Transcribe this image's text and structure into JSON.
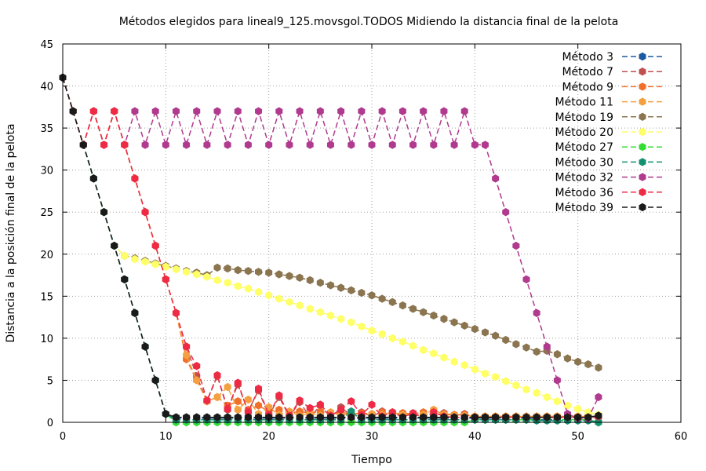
{
  "chart_data": {
    "type": "line",
    "title": "Métodos elegidos para lineal9_125.movsgol.TODOS Midiendo la distancia final de la pelota",
    "xlabel": "Tiempo",
    "ylabel": "Distancia a la posición final de la pelota",
    "xlim": [
      0,
      60
    ],
    "ylim": [
      0,
      45
    ],
    "xticks": [
      0,
      10,
      20,
      30,
      40,
      50,
      60
    ],
    "yticks": [
      0,
      5,
      10,
      15,
      20,
      25,
      30,
      35,
      40,
      45
    ],
    "grid": true,
    "legend_position": "top-right",
    "series": [
      {
        "name": "Método 3",
        "color": "#1a5aa0",
        "x": [
          0,
          1,
          2,
          3,
          4,
          5,
          6,
          7,
          8,
          9,
          10,
          11,
          12,
          13,
          14,
          15,
          16,
          17,
          18,
          19,
          20,
          21,
          22,
          23,
          24,
          25,
          26,
          27,
          28,
          29,
          30,
          31,
          32,
          33,
          34,
          35,
          36,
          37,
          38,
          39,
          40,
          41,
          42,
          43,
          44,
          45,
          46,
          47,
          48,
          49,
          50,
          51,
          52
        ],
        "y": [
          41,
          37,
          33,
          29,
          25,
          21,
          17,
          13,
          9,
          5,
          1,
          0.5,
          0.5,
          0.5,
          0.5,
          0.5,
          0.5,
          0.5,
          0.5,
          0.5,
          0.5,
          0.5,
          0.5,
          0.5,
          0.5,
          0.5,
          0.5,
          0.5,
          0.5,
          0.5,
          0.5,
          0.5,
          0.5,
          0.5,
          0.5,
          0.5,
          0.5,
          0.5,
          0.5,
          0.5,
          0.5,
          0.5,
          0.5,
          0.5,
          0.5,
          0.5,
          0.3,
          0.3,
          0.3,
          0.3,
          0.3,
          0.3,
          0
        ]
      },
      {
        "name": "Método 7",
        "color": "#c0504d",
        "x": [
          0,
          1,
          2,
          3,
          4,
          5,
          6,
          7,
          8,
          9,
          10,
          11,
          12,
          13,
          14,
          15,
          16,
          17,
          18,
          19,
          20,
          21,
          22,
          23,
          24,
          25,
          26,
          27,
          28,
          29,
          30,
          31,
          32,
          33,
          34,
          35,
          36,
          37,
          38,
          39,
          40,
          41,
          42,
          43,
          44,
          45,
          46,
          47,
          48,
          49,
          50,
          51,
          52
        ],
        "y": [
          41,
          37,
          33,
          37,
          33,
          37,
          33,
          29,
          25,
          21,
          17,
          13,
          9,
          5.5,
          2.5,
          5.5,
          1.5,
          4.5,
          1.3,
          3.8,
          0.8,
          3,
          0.7,
          2.4,
          0.6,
          2,
          0.6,
          1.8,
          0.8,
          1.2,
          0.7,
          1.3,
          0.7,
          1.1,
          0.7,
          1,
          0.8,
          1.1,
          0.8,
          1,
          0.6,
          0.6,
          0.6,
          0.6,
          0.6,
          0.6,
          0.6,
          0.6,
          0.6,
          0.6,
          0.6,
          0.6,
          0.6
        ]
      },
      {
        "name": "Método 9",
        "color": "#f0702a",
        "x": [
          0,
          1,
          2,
          3,
          4,
          5,
          6,
          7,
          8,
          9,
          10,
          11,
          12,
          13,
          14,
          15,
          16,
          17,
          18,
          19,
          20,
          21,
          22,
          23,
          24,
          25,
          26,
          27,
          28,
          29,
          30,
          31,
          32,
          33,
          34,
          35,
          36,
          37,
          38,
          39,
          40,
          41,
          42,
          43,
          44,
          45,
          46,
          47,
          48,
          49,
          50,
          51,
          52
        ],
        "y": [
          41,
          37,
          33,
          37,
          33,
          37,
          33,
          29,
          25,
          21,
          17,
          13,
          7.5,
          5,
          2.5,
          3,
          2,
          2.5,
          1.5,
          2,
          1.3,
          1.5,
          1.1,
          1.3,
          1.1,
          1.3,
          1,
          1.2,
          1,
          1.1,
          1,
          1.2,
          1,
          1.1,
          1,
          1.2,
          1.4,
          1,
          0.9,
          0.9,
          0.7,
          0.7,
          0.7,
          0.7,
          0.7,
          0.7,
          0.7,
          0.7,
          0.7,
          0.7,
          0.7,
          0.7,
          0.7
        ]
      },
      {
        "name": "Método 11",
        "color": "#f5a040",
        "x": [
          0,
          1,
          2,
          3,
          4,
          5,
          6,
          7,
          8,
          9,
          10,
          11,
          12,
          13,
          14,
          15,
          16,
          17,
          18,
          19,
          20,
          21,
          22,
          23,
          24,
          25,
          26,
          27,
          28,
          29,
          30,
          31,
          32,
          33,
          34,
          35,
          36,
          37,
          38,
          39,
          40,
          41,
          42,
          43,
          44,
          45,
          46,
          47,
          48,
          49,
          50,
          51,
          52
        ],
        "y": [
          41,
          37,
          33,
          37,
          33,
          37,
          33,
          29,
          25,
          21,
          17,
          13,
          8,
          5,
          2.5,
          3,
          4.2,
          1.5,
          2.7,
          1,
          1.8,
          0.9,
          1.3,
          0.8,
          1.1,
          0.8,
          1.2,
          0.8,
          1.1,
          0.9,
          1,
          0.9,
          1.2,
          0.9,
          1,
          0.9,
          1.5,
          0.9,
          0.8,
          0.8,
          0.7,
          0.7,
          0.7,
          0.7,
          0.7,
          0.7,
          0.7,
          0.7,
          0.7,
          0.7,
          0.7,
          0.7,
          0.7
        ]
      },
      {
        "name": "Método 19",
        "color": "#8b7550",
        "x": [
          0,
          1,
          2,
          3,
          4,
          5,
          6,
          7,
          8,
          9,
          10,
          11,
          12,
          13,
          14,
          15,
          16,
          17,
          18,
          19,
          20,
          21,
          22,
          23,
          24,
          25,
          26,
          27,
          28,
          29,
          30,
          31,
          32,
          33,
          34,
          35,
          36,
          37,
          38,
          39,
          40,
          41,
          42,
          43,
          44,
          45,
          46,
          47,
          48,
          49,
          50,
          51,
          52
        ],
        "y": [
          41,
          37,
          33,
          29,
          25,
          21,
          19.8,
          19.5,
          19.2,
          18.9,
          18.6,
          18.3,
          18,
          17.8,
          17.5,
          18.4,
          18.3,
          18.1,
          18,
          17.9,
          17.8,
          17.6,
          17.4,
          17.2,
          16.9,
          16.6,
          16.3,
          16,
          15.7,
          15.4,
          15.1,
          14.7,
          14.3,
          13.9,
          13.5,
          13.1,
          12.7,
          12.3,
          11.9,
          11.5,
          11.1,
          10.7,
          10.3,
          9.8,
          9.3,
          8.9,
          8.4,
          8.5,
          8.1,
          7.6,
          7.2,
          6.9,
          6.5
        ]
      },
      {
        "name": "Método 20",
        "color": "#ffff66",
        "x": [
          0,
          1,
          2,
          3,
          4,
          5,
          6,
          7,
          8,
          9,
          10,
          11,
          12,
          13,
          14,
          15,
          16,
          17,
          18,
          19,
          20,
          21,
          22,
          23,
          24,
          25,
          26,
          27,
          28,
          29,
          30,
          31,
          32,
          33,
          34,
          35,
          36,
          37,
          38,
          39,
          40,
          41,
          42,
          43,
          44,
          45,
          46,
          47,
          48,
          49,
          50,
          51,
          52
        ],
        "y": [
          41,
          37,
          33,
          29,
          25,
          21,
          19.8,
          19.4,
          19.1,
          18.8,
          18.5,
          18.2,
          17.9,
          17.6,
          17.3,
          16.9,
          16.6,
          16.2,
          15.9,
          15.5,
          15.1,
          14.7,
          14.3,
          13.9,
          13.5,
          13.1,
          12.7,
          12.3,
          11.9,
          11.4,
          10.9,
          10.5,
          10,
          9.6,
          9.1,
          8.6,
          8.2,
          7.7,
          7.2,
          6.8,
          6.3,
          5.8,
          5.4,
          4.9,
          4.4,
          3.9,
          3.5,
          3,
          2.5,
          2,
          1.6,
          1.2,
          0.9
        ]
      },
      {
        "name": "Método 27",
        "color": "#33dd33",
        "x": [
          0,
          1,
          2,
          3,
          4,
          5,
          6,
          7,
          8,
          9,
          10,
          11,
          12,
          13,
          14,
          15,
          16,
          17,
          18,
          19,
          20,
          21,
          22,
          23,
          24,
          25,
          26,
          27,
          28,
          29,
          30,
          31,
          32,
          33,
          34,
          35,
          36,
          37,
          38,
          39,
          40,
          41,
          42,
          43,
          44,
          45,
          46,
          47,
          48,
          49,
          50,
          51,
          52
        ],
        "y": [
          41,
          37,
          33,
          29,
          25,
          21,
          17,
          13,
          9,
          5,
          1,
          0,
          0,
          0,
          0,
          0,
          0,
          0,
          0,
          0,
          0,
          0,
          0,
          0,
          0,
          0,
          0,
          0,
          0,
          0,
          0,
          0,
          0,
          0,
          0,
          0,
          0,
          0,
          0,
          0,
          0.3,
          0.3,
          0.3,
          0.3,
          0.3,
          0.3,
          0.3,
          0.3,
          0.3,
          0.3,
          0.3,
          0.3,
          0
        ]
      },
      {
        "name": "Método 30",
        "color": "#149070",
        "x": [
          0,
          1,
          2,
          3,
          4,
          5,
          6,
          7,
          8,
          9,
          10,
          11,
          12,
          13,
          14,
          15,
          16,
          17,
          18,
          19,
          20,
          21,
          22,
          23,
          24,
          25,
          26,
          27,
          28,
          29,
          30,
          31,
          32,
          33,
          34,
          35,
          36,
          37,
          38,
          39,
          40,
          41,
          42,
          43,
          44,
          45,
          46,
          47,
          48,
          49,
          50,
          51,
          52
        ],
        "y": [
          41,
          37,
          33,
          29,
          25,
          21,
          17,
          13,
          9,
          5,
          1,
          0.3,
          0.3,
          0.3,
          0.3,
          0.3,
          0.3,
          0.3,
          0.3,
          0.3,
          0.3,
          0.3,
          0.3,
          0.3,
          0.3,
          0.3,
          0.3,
          0.3,
          1.3,
          0.3,
          0.3,
          0.3,
          0.3,
          0.3,
          0.3,
          0.3,
          0.3,
          0.3,
          0.3,
          0.3,
          0.3,
          0.3,
          0.3,
          0.3,
          0.3,
          0.3,
          0.2,
          0.2,
          0.2,
          0.2,
          0.2,
          0.2,
          0
        ]
      },
      {
        "name": "Método 32",
        "color": "#b03a8e",
        "x": [
          0,
          1,
          2,
          3,
          4,
          5,
          6,
          7,
          8,
          9,
          10,
          11,
          12,
          13,
          14,
          15,
          16,
          17,
          18,
          19,
          20,
          21,
          22,
          23,
          24,
          25,
          26,
          27,
          28,
          29,
          30,
          31,
          32,
          33,
          34,
          35,
          36,
          37,
          38,
          39,
          40,
          41,
          42,
          43,
          44,
          45,
          46,
          47,
          48,
          49,
          50,
          51,
          52
        ],
        "y": [
          41,
          37,
          33,
          37,
          33,
          37,
          33,
          37,
          33,
          37,
          33,
          37,
          33,
          37,
          33,
          37,
          33,
          37,
          33,
          37,
          33,
          37,
          33,
          37,
          33,
          37,
          33,
          37,
          33,
          37,
          33,
          37,
          33,
          37,
          33,
          37,
          33,
          37,
          33,
          37,
          33,
          33,
          29,
          25,
          21,
          17,
          13,
          9,
          5,
          1,
          0.5,
          0.5,
          3
        ]
      },
      {
        "name": "Método 36",
        "color": "#ee2a44",
        "x": [
          0,
          1,
          2,
          3,
          4,
          5,
          6,
          7,
          8,
          9,
          10,
          11,
          12,
          13,
          14,
          15,
          16,
          17,
          18,
          19,
          20,
          21,
          22,
          23,
          24,
          25,
          26,
          27,
          28,
          29,
          30,
          31,
          32,
          33,
          34,
          35,
          36,
          37,
          38,
          39,
          40,
          41,
          42,
          43,
          44,
          45,
          46,
          47,
          48,
          49,
          50,
          51,
          52
        ],
        "y": [
          41,
          37,
          33,
          37,
          33,
          37,
          33,
          29,
          25,
          21,
          17,
          13,
          9,
          6.7,
          2.6,
          5.6,
          1.6,
          4.7,
          1.2,
          4,
          0.9,
          3.2,
          0.8,
          2.6,
          1.7,
          2.1,
          0.8,
          1.5,
          2.5,
          0.9,
          2.1,
          0.7,
          1.2,
          0.6,
          1.1,
          0.6,
          1.2,
          0.7,
          0.6,
          0.6,
          0.6,
          0.6,
          0.6,
          0.6,
          0.6,
          0.6,
          0.6,
          0.6,
          0.6,
          0.6,
          0.6,
          0.6,
          0.7
        ]
      },
      {
        "name": "Método 39",
        "color": "#1a1a1a",
        "x": [
          0,
          1,
          2,
          3,
          4,
          5,
          6,
          7,
          8,
          9,
          10,
          11,
          12,
          13,
          14,
          15,
          16,
          17,
          18,
          19,
          20,
          21,
          22,
          23,
          24,
          25,
          26,
          27,
          28,
          29,
          30,
          31,
          32,
          33,
          34,
          35,
          36,
          37,
          38,
          39,
          40,
          41,
          42,
          43,
          44,
          45,
          46,
          47,
          48,
          49,
          50,
          51,
          52
        ],
        "y": [
          41,
          37,
          33,
          29,
          25,
          21,
          17,
          13,
          9,
          5,
          1,
          0.6,
          0.6,
          0.6,
          0.6,
          0.6,
          0.6,
          0.6,
          0.6,
          0.6,
          0.6,
          0.6,
          0.6,
          0.6,
          0.6,
          0.6,
          0.6,
          0.6,
          0.6,
          0.6,
          0.6,
          0.6,
          0.6,
          0.6,
          0.6,
          0.6,
          0.6,
          0.6,
          0.6,
          0.6,
          0.6,
          0.6,
          0.6,
          0.6,
          0.6,
          0.6,
          0.6,
          0.6,
          0.6,
          0.6,
          0.6,
          0.6,
          0.8
        ]
      }
    ]
  }
}
